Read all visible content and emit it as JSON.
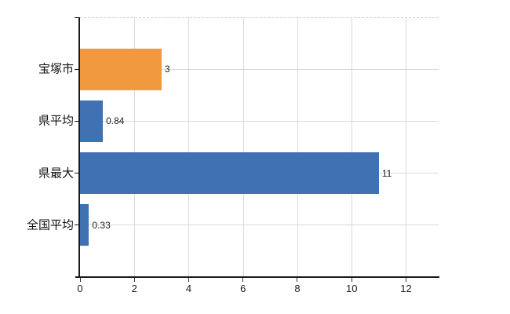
{
  "chart_data": {
    "type": "bar",
    "orientation": "horizontal",
    "title": "",
    "xlabel": "",
    "ylabel": "",
    "categories": [
      "宝塚市",
      "県平均",
      "県最大",
      "全国平均"
    ],
    "values": [
      3,
      0.84,
      11,
      0.33
    ],
    "value_labels": [
      "3",
      "0.84",
      "11",
      "0.33"
    ],
    "bar_colors": [
      "#F0993F",
      "#3F71B3",
      "#3F71B3",
      "#3F71B3"
    ],
    "x_ticks": [
      0,
      2,
      4,
      6,
      8,
      10,
      12
    ],
    "x_tick_labels": [
      "0",
      "2",
      "4",
      "6",
      "8",
      "10",
      "12"
    ],
    "xlim": [
      0,
      13.2
    ],
    "grid": true,
    "legend": false
  },
  "style": {
    "background_color": "#ffffff",
    "grid_color": "#d9d9d9",
    "top_border_color": "#cfd0cf",
    "axis_color": "#1a1a1a",
    "tick_color": "#333333",
    "category_label_color": "#111111",
    "value_label_color": "#222222",
    "x_tick_label_color": "#222222"
  }
}
